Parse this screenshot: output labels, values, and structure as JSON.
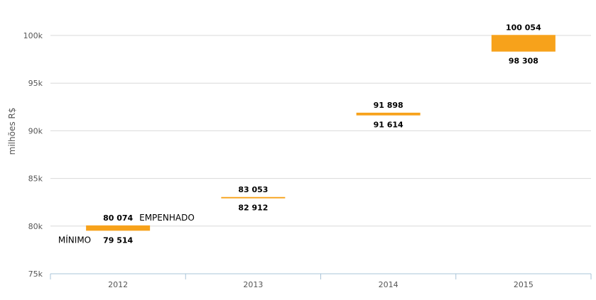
{
  "chart_data": {
    "type": "bar",
    "title": "",
    "xlabel": "",
    "ylabel": "milhões R$",
    "categories": [
      "2012",
      "2013",
      "2014",
      "2015"
    ],
    "series": [
      {
        "name": "MÍNIMO",
        "values": [
          79514,
          82912,
          91614,
          98308
        ]
      },
      {
        "name": "EMPENHADO",
        "values": [
          80074,
          83053,
          91898,
          100054
        ]
      }
    ],
    "range_labels": {
      "low": [
        "79 514",
        "82 912",
        "91 614",
        "98 308"
      ],
      "high": [
        "80 074",
        "83 053",
        "91 898",
        "100 054"
      ]
    },
    "ylim": [
      75000,
      100000
    ],
    "yticks": [
      75000,
      80000,
      85000,
      90000,
      95000,
      100000
    ],
    "ytick_labels": [
      "75k",
      "80k",
      "85k",
      "90k",
      "95k",
      "100k"
    ],
    "grid": true,
    "legend": "inline labels beside the 2012 range",
    "bar_color": "#f7a21b"
  }
}
